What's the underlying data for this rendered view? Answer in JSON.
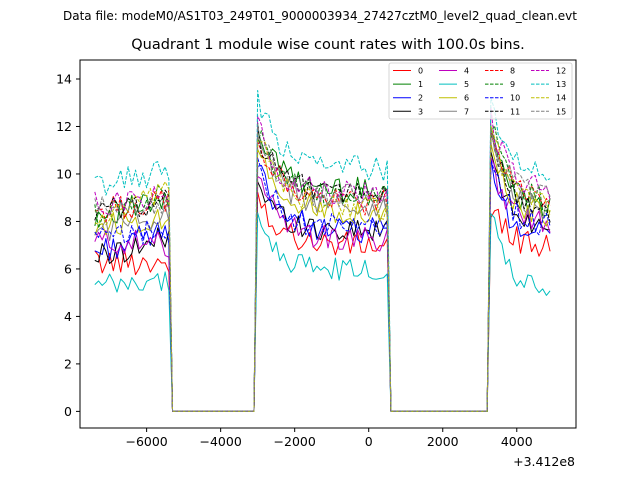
{
  "chart_data": {
    "type": "line",
    "suptitle": "Data file: modeM0/AS1T03_249T01_9000003934_27427cztM0_level2_quad_clean.evt",
    "title": "Quadrant 1 module wise count rates with 100.0s bins.",
    "xlabel": "",
    "ylabel": "",
    "x_offset_label": "+3.412e8",
    "xlim": [
      -7800,
      5600
    ],
    "ylim": [
      -0.7,
      14.8
    ],
    "xticks": [
      -6000,
      -4000,
      -2000,
      0,
      2000,
      4000
    ],
    "xtick_labels": [
      "−6000",
      "−4000",
      "−2000",
      "0",
      "2000",
      "4000"
    ],
    "yticks": [
      0,
      2,
      4,
      6,
      8,
      10,
      12,
      14
    ],
    "ytick_labels": [
      "0",
      "2",
      "4",
      "6",
      "8",
      "10",
      "12",
      "14"
    ],
    "legend_position": "top-right",
    "grid": false,
    "x_start": -7400,
    "bin": 100,
    "segments": [
      {
        "start": -7400,
        "end": -5400
      },
      {
        "start": -3000,
        "end": 500
      },
      {
        "start": 3300,
        "end": 4900
      }
    ],
    "series": [
      {
        "name": "0",
        "color": "#ff0000",
        "dash": false,
        "levels": [
          6.3,
          6.3,
          9.2,
          7.0,
          8.6,
          6.9
        ]
      },
      {
        "name": "1",
        "color": "#008000",
        "dash": false,
        "levels": [
          8.3,
          8.8,
          12.0,
          9.3,
          11.6,
          8.4
        ]
      },
      {
        "name": "2",
        "color": "#0000ff",
        "dash": false,
        "levels": [
          6.7,
          7.6,
          10.5,
          7.6,
          10.2,
          7.3
        ]
      },
      {
        "name": "3",
        "color": "#000000",
        "dash": false,
        "levels": [
          6.5,
          7.3,
          9.6,
          7.6,
          10.8,
          7.7
        ]
      },
      {
        "name": "4",
        "color": "#bf00bf",
        "dash": false,
        "levels": [
          7.2,
          7.0,
          10.3,
          7.2,
          10.7,
          7.8
        ]
      },
      {
        "name": "5",
        "color": "#00bfbf",
        "dash": false,
        "levels": [
          5.2,
          5.5,
          8.0,
          5.9,
          8.3,
          4.9
        ]
      },
      {
        "name": "6",
        "color": "#bfbf00",
        "dash": false,
        "levels": [
          7.8,
          8.2,
          11.0,
          8.4,
          11.4,
          8.2
        ]
      },
      {
        "name": "7",
        "color": "#808080",
        "dash": false,
        "levels": [
          7.6,
          8.3,
          11.6,
          8.6,
          11.8,
          8.3
        ]
      },
      {
        "name": "8",
        "color": "#ff0000",
        "dash": true,
        "levels": [
          8.4,
          8.9,
          11.7,
          8.8,
          12.1,
          8.9
        ]
      },
      {
        "name": "9",
        "color": "#008000",
        "dash": true,
        "levels": [
          8.2,
          9.2,
          11.8,
          9.0,
          12.2,
          8.8
        ]
      },
      {
        "name": "10",
        "color": "#0000ff",
        "dash": true,
        "levels": [
          7.2,
          7.7,
          10.3,
          7.7,
          10.6,
          7.7
        ]
      },
      {
        "name": "11",
        "color": "#000000",
        "dash": true,
        "levels": [
          8.4,
          8.9,
          11.6,
          9.2,
          11.8,
          8.4
        ]
      },
      {
        "name": "12",
        "color": "#bf00bf",
        "dash": true,
        "levels": [
          8.7,
          9.1,
          12.0,
          9.1,
          12.4,
          9.2
        ]
      },
      {
        "name": "13",
        "color": "#00bfbf",
        "dash": true,
        "levels": [
          9.5,
          10.1,
          13.2,
          10.2,
          13.4,
          9.9
        ]
      },
      {
        "name": "14",
        "color": "#bfbf00",
        "dash": true,
        "levels": [
          8.0,
          9.2,
          11.7,
          8.6,
          12.1,
          8.7
        ]
      },
      {
        "name": "15",
        "color": "#808080",
        "dash": true,
        "levels": [
          8.5,
          8.8,
          11.8,
          9.0,
          12.0,
          8.9
        ]
      }
    ]
  }
}
